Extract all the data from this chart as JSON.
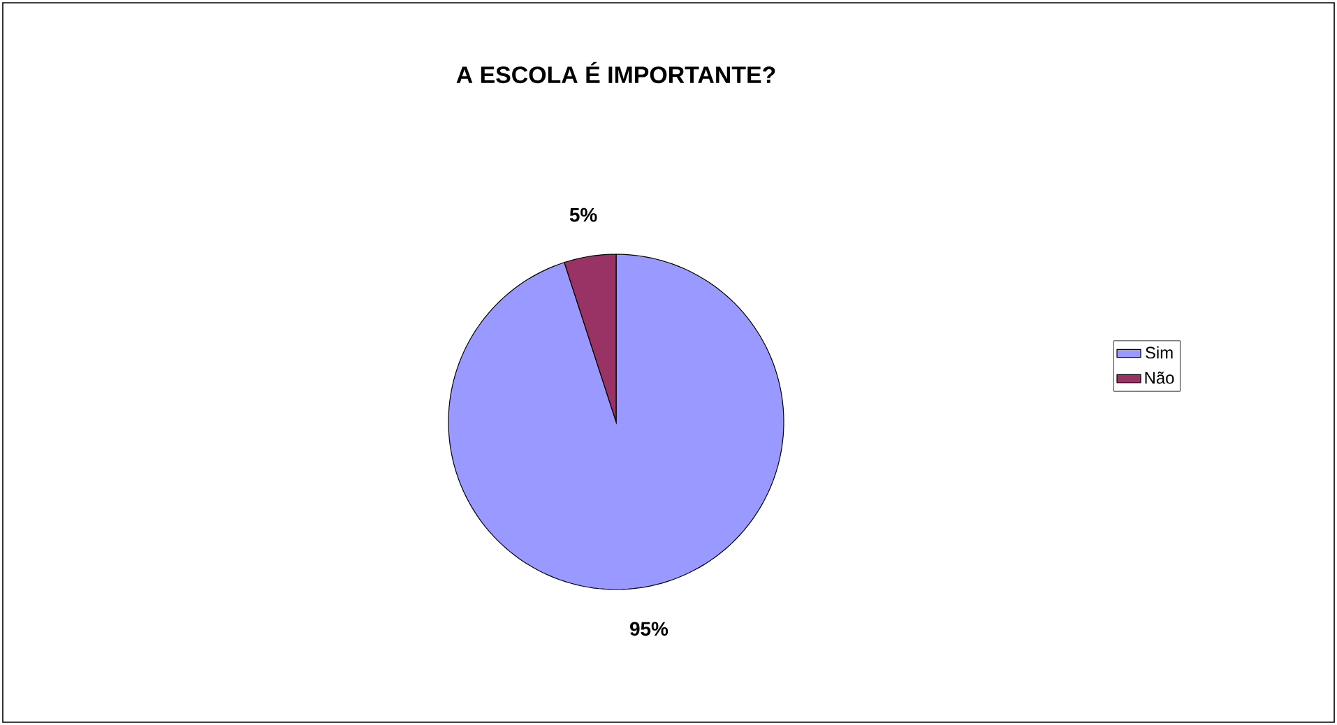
{
  "chart_data": {
    "type": "pie",
    "title": "A ESCOLA É IMPORTANTE?",
    "categories": [
      "Sim",
      "Não"
    ],
    "values": [
      95,
      5
    ],
    "value_labels": [
      "95%",
      "5%"
    ],
    "colors": [
      "#9999ff",
      "#993366"
    ],
    "legend": "right"
  }
}
